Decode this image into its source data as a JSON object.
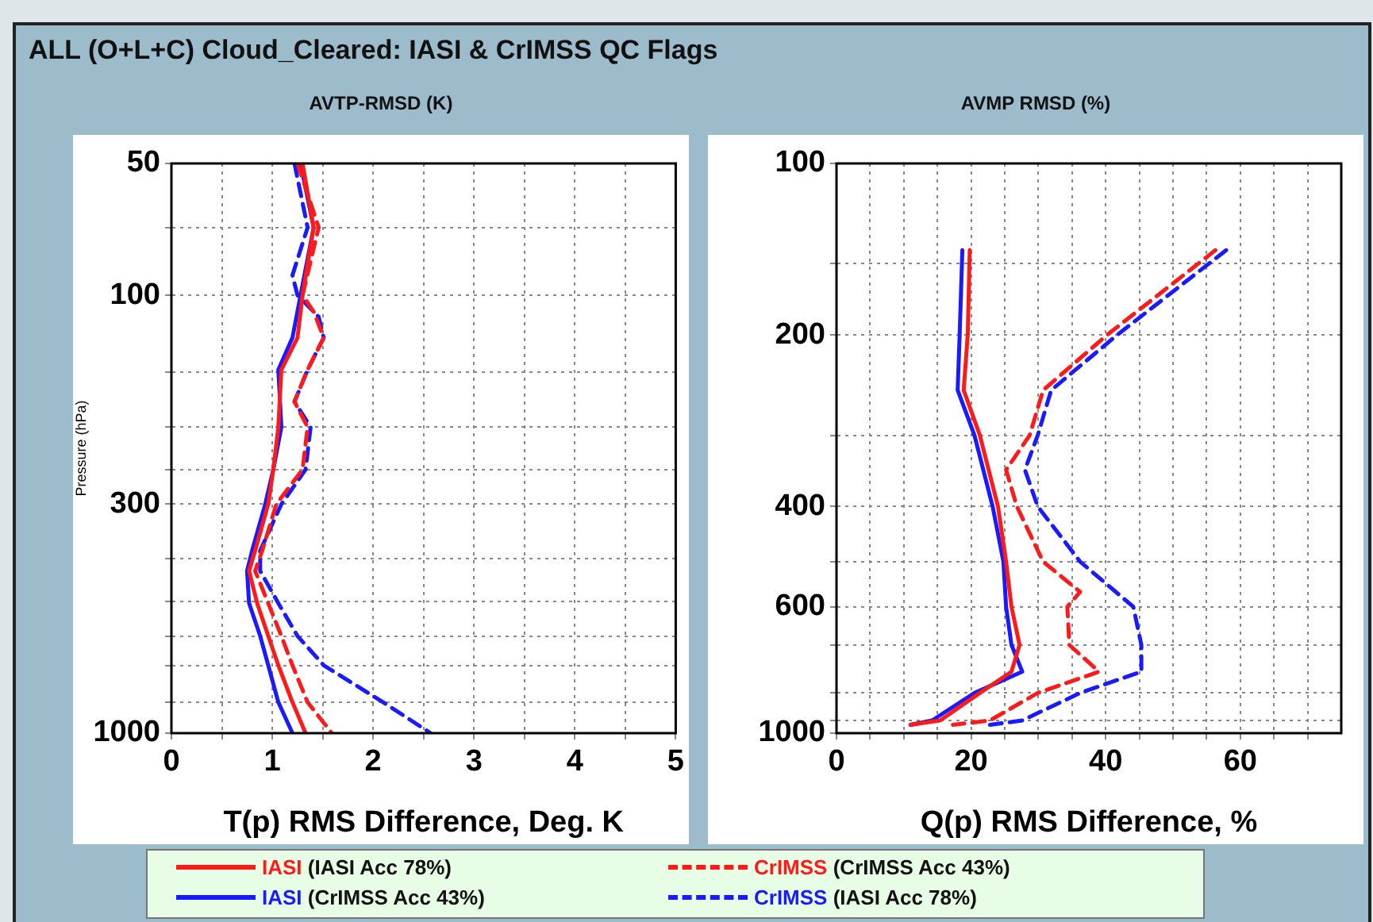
{
  "chart_data": [
    {
      "type": "line",
      "title": "ALL (O+L+C) Cloud_Cleared: IASI & CrIMSS QC Flags",
      "subtitle": "AVTP-RMSD (K)",
      "xlabel": "T(p) RMS Difference, Deg. K",
      "ylabel": "Pressure (hPa)",
      "xlim": [
        0,
        5
      ],
      "xticks": [
        0,
        {
          "value": 0.5,
          "label": null
        },
        1,
        {
          "value": 1.5,
          "label": null
        },
        2,
        {
          "value": 2.5,
          "label": null
        },
        3,
        {
          "value": 3.5,
          "label": null
        },
        4,
        {
          "value": 4.5,
          "label": null
        },
        5
      ],
      "ylim": [
        1000,
        50
      ],
      "yticks": [
        50,
        {
          "value": 70,
          "label": null
        },
        100,
        {
          "value": 150,
          "label": null
        },
        {
          "value": 200,
          "label": null
        },
        {
          "value": 250,
          "label": null
        },
        300,
        {
          "value": 400,
          "label": null
        },
        {
          "value": 500,
          "label": null
        },
        {
          "value": 600,
          "label": null
        },
        {
          "value": 700,
          "label": null
        },
        {
          "value": 850,
          "label": null
        },
        1000
      ],
      "log": "y",
      "grid": true,
      "legend": "bottom",
      "marker": "none",
      "series": [
        {
          "name": "IASI (IASI Acc 78%)",
          "color": "#ff1a1a",
          "line_style": "solid",
          "x": [
            1.3,
            1.41,
            1.3,
            1.25,
            1.09,
            1.06,
            1.01,
            0.96,
            0.83,
            0.77,
            0.85,
            0.96,
            1.06,
            1.2,
            1.33
          ],
          "values": [
            50,
            70,
            100,
            125,
            148,
            200,
            250,
            300,
            383,
            426,
            505,
            600,
            700,
            850,
            1000
          ]
        },
        {
          "name": "CrIMSS (CrIMSS Acc 43%)",
          "color": "#ff1a1a",
          "line_style": "dashed",
          "x": [
            1.25,
            1.46,
            1.3,
            1.41,
            1.51,
            1.35,
            1.22,
            1.35,
            1.3,
            1.04,
            0.9,
            0.83,
            0.96,
            1.09,
            1.2,
            1.35,
            1.59
          ],
          "values": [
            50,
            70,
            100,
            109,
            125,
            148,
            175,
            200,
            250,
            300,
            383,
            426,
            505,
            600,
            700,
            850,
            1000
          ]
        },
        {
          "name": "IASI (CrIMSS Acc 43%)",
          "color": "#1a1aff",
          "line_style": "solid",
          "x": [
            1.28,
            1.41,
            1.28,
            1.2,
            1.06,
            1.09,
            1.01,
            0.93,
            0.8,
            0.75,
            0.77,
            0.88,
            0.96,
            1.06,
            1.2
          ],
          "values": [
            50,
            70,
            100,
            125,
            148,
            200,
            250,
            300,
            383,
            426,
            505,
            600,
            700,
            850,
            1000
          ]
        },
        {
          "name": "CrIMSS (IASI Acc 78%)",
          "color": "#1a1aff",
          "line_style": "dashed",
          "x": [
            1.22,
            1.35,
            1.2,
            1.25,
            1.46,
            1.51,
            1.35,
            1.22,
            1.38,
            1.33,
            1.09,
            0.88,
            0.88,
            1.06,
            1.25,
            1.51,
            2.1,
            2.57
          ],
          "values": [
            50,
            70,
            90,
            100,
            112,
            125,
            148,
            175,
            200,
            250,
            300,
            383,
            426,
            505,
            600,
            700,
            850,
            1000
          ]
        }
      ]
    },
    {
      "type": "line",
      "subtitle": "AVMP RMSD (%)",
      "xlabel": "Q(p) RMS Difference, %",
      "xlim": [
        0,
        75
      ],
      "xticks": [
        0,
        {
          "value": 5,
          "label": null
        },
        {
          "value": 10,
          "label": null
        },
        {
          "value": 15,
          "label": null
        },
        20,
        {
          "value": 25,
          "label": null
        },
        {
          "value": 30,
          "label": null
        },
        {
          "value": 35,
          "label": null
        },
        40,
        {
          "value": 45,
          "label": null
        },
        {
          "value": 50,
          "label": null
        },
        {
          "value": 55,
          "label": null
        },
        60,
        {
          "value": 65,
          "label": null
        },
        {
          "value": 70,
          "label": null
        }
      ],
      "ylim": [
        1000,
        100
      ],
      "yticks": [
        100,
        {
          "value": 150,
          "label": null
        },
        200,
        {
          "value": 300,
          "label": null
        },
        400,
        {
          "value": 500,
          "label": null
        },
        600,
        {
          "value": 700,
          "label": null
        },
        {
          "value": 850,
          "label": null
        },
        {
          "value": 950,
          "label": null
        },
        1000
      ],
      "log": "y",
      "grid": true,
      "marker": "none",
      "series": [
        {
          "color": "#ff1a1a",
          "line_style": "solid",
          "x": [
            19.8,
            19.5,
            18.9,
            21.3,
            24.0,
            25.2,
            26.0,
            27.2,
            26.0,
            21.3,
            15.4,
            11.0
          ],
          "values": [
            142,
            200,
            250,
            300,
            400,
            500,
            600,
            700,
            780,
            850,
            950,
            967
          ]
        },
        {
          "color": "#ff1a1a",
          "line_style": "dashed",
          "x": [
            56.3,
            40.2,
            30.7,
            28.7,
            25.2,
            26.8,
            30.7,
            36.2,
            34.3,
            34.6,
            39.0,
            29.9,
            22.8,
            17.3
          ],
          "values": [
            142,
            200,
            250,
            300,
            345,
            400,
            500,
            565,
            600,
            700,
            780,
            850,
            950,
            967
          ]
        },
        {
          "color": "#1a1aff",
          "line_style": "solid",
          "x": [
            18.7,
            18.3,
            18.0,
            20.5,
            23.2,
            24.8,
            25.2,
            26.0,
            27.6,
            20.5,
            14.2,
            11.0
          ],
          "values": [
            142,
            200,
            250,
            300,
            400,
            500,
            600,
            700,
            780,
            850,
            950,
            967
          ]
        },
        {
          "color": "#1a1aff",
          "line_style": "dashed",
          "x": [
            57.9,
            41.7,
            31.9,
            29.9,
            28.0,
            29.9,
            36.2,
            44.1,
            45.3,
            45.3,
            36.2,
            27.6,
            22.8
          ],
          "values": [
            142,
            200,
            250,
            300,
            345,
            400,
            500,
            600,
            700,
            780,
            850,
            950,
            967
          ]
        }
      ]
    }
  ]
}
